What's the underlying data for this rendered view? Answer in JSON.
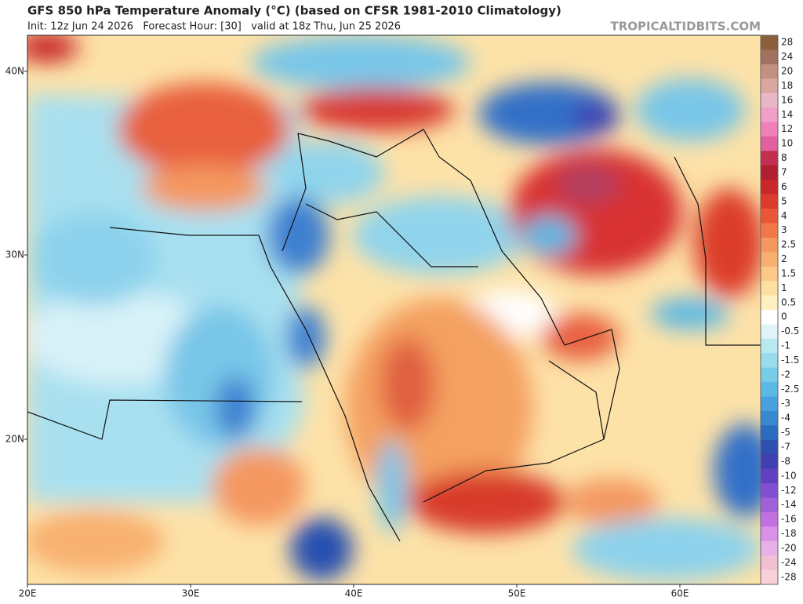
{
  "header": {
    "title": "GFS 850 hPa Temperature Anomaly (°C) (based on CFSR 1981-2010 Climatology)",
    "subtitle": "Init: 12z Jun 24 2026   Forecast Hour: [30]   valid at 18z Thu, Jun 25 2026",
    "watermark": "TROPICALTIDBITS.COM"
  },
  "map": {
    "lat_labels": [
      "40N",
      "30N",
      "20N"
    ],
    "lon_labels": [
      "20E",
      "30E",
      "40E",
      "50E",
      "60E"
    ]
  },
  "colorbar": {
    "labels": [
      "28",
      "24",
      "20",
      "18",
      "16",
      "14",
      "12",
      "10",
      "8",
      "7",
      "6",
      "5",
      "4",
      "3",
      "2.5",
      "2",
      "1.5",
      "1",
      "0.5",
      "0",
      "-0.5",
      "-1",
      "-1.5",
      "-2",
      "-2.5",
      "-3",
      "-4",
      "-5",
      "-7",
      "-8",
      "-10",
      "-12",
      "-14",
      "-16",
      "-18",
      "-20",
      "-24",
      "-28"
    ],
    "colors": [
      "#8b5e3c",
      "#a07060",
      "#c49080",
      "#d8a8a0",
      "#e8b8c8",
      "#f0a0c8",
      "#f080b8",
      "#e060a0",
      "#c03050",
      "#b02030",
      "#c82828",
      "#dc3c2c",
      "#e85838",
      "#f07848",
      "#f49860",
      "#f8b070",
      "#fcc888",
      "#fde0a0",
      "#fff0c0",
      "#ffffff",
      "#e0f4f8",
      "#b8e8f0",
      "#98dcec",
      "#78cce8",
      "#5cb8e4",
      "#48a0dc",
      "#3888d0",
      "#2c6cc0",
      "#3050b0",
      "#4040b0",
      "#6040c0",
      "#8050d0",
      "#a060d8",
      "#c070e0",
      "#d890e8",
      "#e8b0e8",
      "#f0c0d0",
      "#f8d0d8"
    ]
  }
}
